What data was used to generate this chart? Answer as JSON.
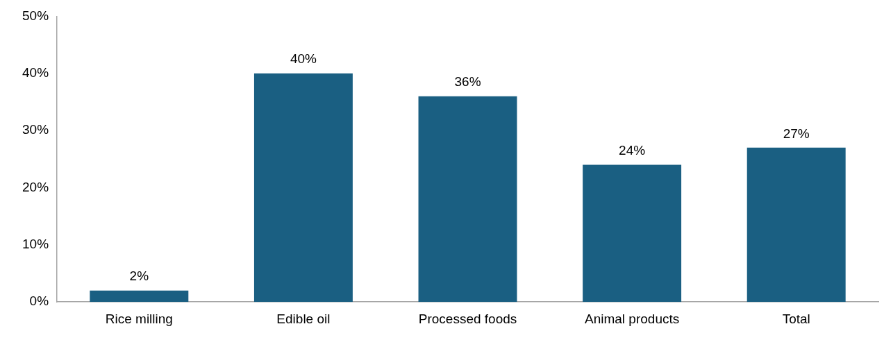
{
  "chart_data": {
    "type": "bar",
    "categories": [
      "Rice milling",
      "Edible oil",
      "Processed foods",
      "Animal products",
      "Total"
    ],
    "values": [
      2,
      40,
      36,
      24,
      27
    ],
    "value_labels": [
      "2%",
      "40%",
      "36%",
      "24%",
      "27%"
    ],
    "color": "#1a5f82",
    "ylim": [
      0,
      50
    ],
    "yticks": [
      {
        "value": 0,
        "label": "0%"
      },
      {
        "value": 10,
        "label": "10%"
      },
      {
        "value": 20,
        "label": "20%"
      },
      {
        "value": 30,
        "label": "30%"
      },
      {
        "value": 40,
        "label": "40%"
      },
      {
        "value": 50,
        "label": "50%"
      }
    ],
    "grid": false,
    "legend": false
  }
}
